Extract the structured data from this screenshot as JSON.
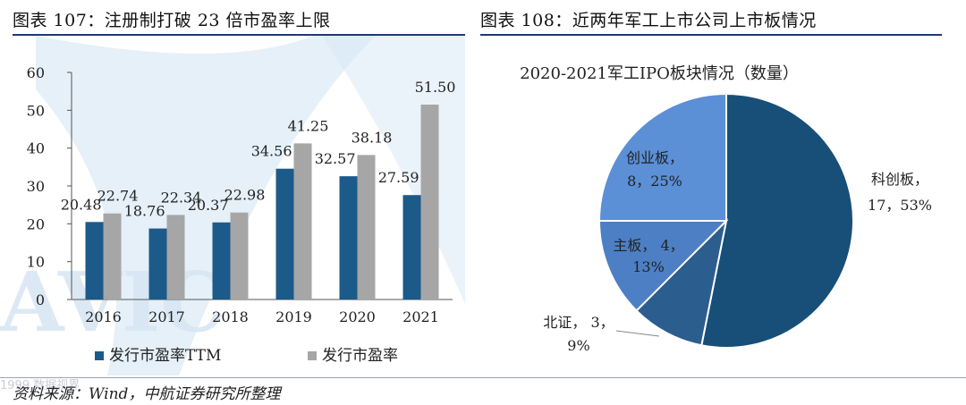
{
  "left_panel": {
    "caption": "图表 107：注册制打破 23 倍市盈率上限"
  },
  "right_panel": {
    "caption": "图表 108：近两年军工上市公司上市板情况"
  },
  "watermark": {
    "text": "AVIC"
  },
  "corner_watermark": "1999 数据视界",
  "source": "资料来源：Wind，中航证券研究所整理",
  "colors": {
    "dark_blue": "#1c5a8a",
    "gray": "#a6a6a6",
    "rule": "#1f3a73",
    "pie_kechuang": "#174f78",
    "pie_chuangye": "#5b8fd6",
    "pie_zhuban": "#4d7fc4",
    "pie_beizheng": "#2c5d8f"
  },
  "chart_data": [
    {
      "type": "bar",
      "categories": [
        "2016",
        "2017",
        "2018",
        "2019",
        "2020",
        "2021"
      ],
      "series": [
        {
          "name": "发行市盈率TTM",
          "values": [
            20.48,
            18.76,
            20.37,
            34.56,
            32.57,
            27.59
          ]
        },
        {
          "name": "发行市盈率",
          "values": [
            22.74,
            22.34,
            22.98,
            41.25,
            38.18,
            51.5
          ]
        }
      ],
      "value_labels": [
        [
          "20.48",
          "18.76",
          "20.37",
          "34.56",
          "32.57",
          "27.59"
        ],
        [
          "22.74",
          "22.34",
          "22.98",
          "41.25",
          "38.18",
          "51.50"
        ]
      ],
      "yticks": [
        "0",
        "10",
        "20",
        "30",
        "40",
        "50",
        "60"
      ],
      "ylim": [
        0,
        60
      ],
      "title": "",
      "xlabel": "",
      "ylabel": "",
      "legend": "bottom-left"
    },
    {
      "type": "pie",
      "title": "2020-2021军工IPO板块情况（数量）",
      "slices": [
        {
          "name": "科创板",
          "count": 17,
          "percent": 53,
          "count_text": "17，53%"
        },
        {
          "name": "北证",
          "count": 3,
          "percent": 9,
          "count_text": "3，",
          "percent_text": "9%"
        },
        {
          "name": "主板",
          "count": 4,
          "percent": 13,
          "count_text": "4，",
          "percent_text": "13%"
        },
        {
          "name": "创业板",
          "count": 8,
          "percent": 25,
          "count_text": "8，25%"
        }
      ]
    }
  ]
}
